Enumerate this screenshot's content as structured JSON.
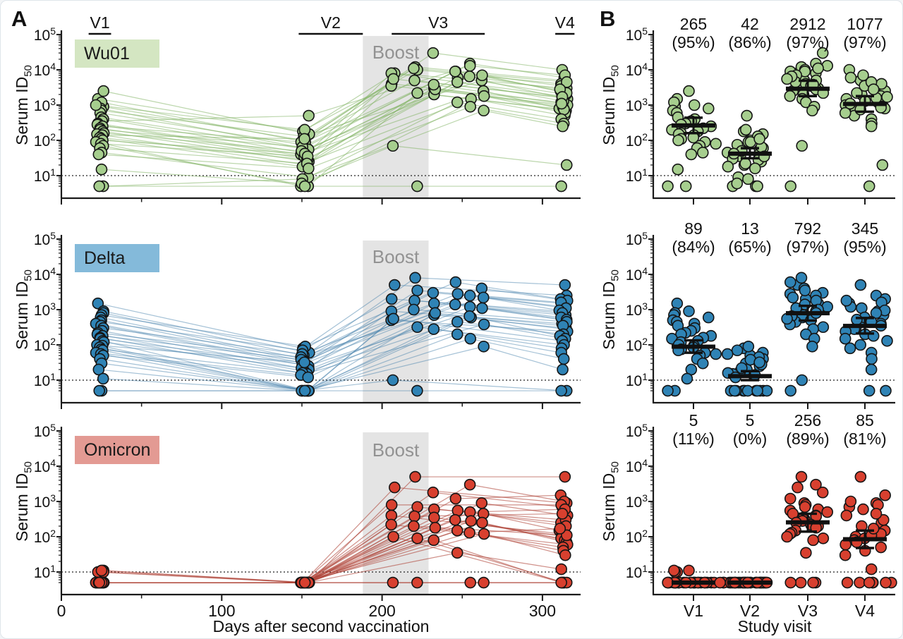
{
  "figure": {
    "panel_a_label": "A",
    "panel_b_label": "B",
    "y_axis_title": {
      "text": "Serum ID",
      "sub": "50"
    },
    "x_axis_title_a": "Days after second vaccination",
    "x_axis_title_b": "Study visit",
    "boost": {
      "label": "Boost",
      "day_start": 188,
      "day_end": 229,
      "fill": "#e4e4e4",
      "text_color": "#929292"
    },
    "visit_spans": [
      {
        "label": "V1",
        "day_start": 17,
        "day_end": 31
      },
      {
        "label": "V2",
        "day_start": 148,
        "day_end": 188
      },
      {
        "label": "V3",
        "day_start": 206,
        "day_end": 264
      },
      {
        "label": "V4",
        "day_start": 308,
        "day_end": 320
      }
    ],
    "axes": {
      "y_scale": "log10",
      "y_limits": [
        5,
        100000
      ],
      "y_ticks": [
        {
          "base": "10",
          "exp": "5"
        },
        {
          "base": "10",
          "exp": "4"
        },
        {
          "base": "10",
          "exp": "3"
        },
        {
          "base": "10",
          "exp": "2"
        },
        {
          "base": "10",
          "exp": "1"
        }
      ],
      "detection_threshold": 10,
      "floor_value": 5,
      "a_x_major_ticks": [
        0,
        100,
        200,
        300
      ],
      "a_x_minor_ticks": [
        50,
        150,
        250
      ],
      "b_x_ticks": [
        "V1",
        "V2",
        "V3",
        "V4"
      ]
    }
  },
  "chart_data": [
    {
      "type": "line-scatter",
      "antigen": "Wu01",
      "colors": {
        "fill": "#a6ce8e",
        "line": "#84b566",
        "legend_bg": "#d4e6c2",
        "line_opacity": 0.55
      },
      "visit_days": {
        "v1": 24,
        "v2": 152,
        "v3_options": [
          207,
          221,
          233,
          246,
          255,
          263
        ],
        "v4": 313
      },
      "subjects": [
        [
          1500,
          180,
          8000,
          3000
        ],
        [
          2500,
          150,
          12000,
          5000
        ],
        [
          900,
          100,
          30000,
          10000
        ],
        [
          1200,
          90,
          9000,
          2500
        ],
        [
          800,
          60,
          15000,
          6000
        ],
        [
          700,
          130,
          5000,
          1500
        ],
        [
          600,
          75,
          4000,
          1200
        ],
        [
          1000,
          200,
          10000,
          4000
        ],
        [
          450,
          55,
          3000,
          900
        ],
        [
          400,
          45,
          6000,
          2000
        ],
        [
          350,
          500,
          13000,
          7000
        ],
        [
          300,
          40,
          2500,
          800
        ],
        [
          280,
          35,
          8000,
          1800
        ],
        [
          250,
          90,
          5000,
          1600
        ],
        [
          220,
          30,
          2000,
          700
        ],
        [
          200,
          65,
          9000,
          3500
        ],
        [
          180,
          25,
          1500,
          500
        ],
        [
          160,
          50,
          7000,
          2200
        ],
        [
          150,
          20,
          3500,
          1000
        ],
        [
          140,
          110,
          11000,
          4500
        ],
        [
          120,
          28,
          2800,
          850
        ],
        [
          110,
          18,
          4500,
          1300
        ],
        [
          100,
          42,
          6500,
          2800
        ],
        [
          90,
          5,
          1800,
          600
        ],
        [
          80,
          35,
          5500,
          1700
        ],
        [
          70,
          5,
          2200,
          750
        ],
        [
          60,
          22,
          3800,
          1100
        ],
        [
          45,
          9,
          1200,
          400
        ],
        [
          40,
          16,
          900,
          300
        ],
        [
          5,
          8,
          700,
          250
        ],
        [
          15,
          6,
          70,
          20
        ],
        [
          5,
          5,
          5,
          5
        ]
      ],
      "b_stats": {
        "gmt": [
          265,
          42,
          2912,
          1077
        ],
        "responder_pct": [
          95,
          86,
          97,
          97
        ],
        "ci_low": [
          160,
          31,
          1800,
          650
        ],
        "ci_high": [
          440,
          60,
          4900,
          1800
        ]
      }
    },
    {
      "type": "line-scatter",
      "antigen": "Delta",
      "colors": {
        "fill": "#2f83b5",
        "line": "#4a84ad",
        "legend_bg": "#84bada",
        "line_opacity": 0.5
      },
      "visit_days": {
        "v1": 24,
        "v2": 152,
        "v3_options": [
          207,
          221,
          233,
          246,
          255,
          263
        ],
        "v4": 313
      },
      "subjects": [
        [
          1500,
          80,
          5000,
          2500
        ],
        [
          900,
          60,
          8000,
          5000
        ],
        [
          800,
          50,
          3000,
          1500
        ],
        [
          700,
          90,
          6000,
          2000
        ],
        [
          600,
          40,
          2500,
          1200
        ],
        [
          500,
          35,
          4000,
          1800
        ],
        [
          450,
          70,
          2000,
          900
        ],
        [
          400,
          30,
          3500,
          1600
        ],
        [
          350,
          25,
          1500,
          700
        ],
        [
          300,
          55,
          2800,
          1100
        ],
        [
          250,
          20,
          1200,
          500
        ],
        [
          220,
          45,
          2200,
          950
        ],
        [
          200,
          18,
          900,
          400
        ],
        [
          180,
          38,
          1800,
          800
        ],
        [
          160,
          15,
          700,
          300
        ],
        [
          150,
          28,
          1400,
          600
        ],
        [
          130,
          5,
          600,
          280
        ],
        [
          120,
          22,
          1100,
          520
        ],
        [
          100,
          5,
          500,
          240
        ],
        [
          95,
          32,
          1000,
          450
        ],
        [
          85,
          5,
          800,
          350
        ],
        [
          75,
          16,
          450,
          200
        ],
        [
          70,
          5,
          650,
          180
        ],
        [
          60,
          14,
          380,
          150
        ],
        [
          55,
          5,
          550,
          130
        ],
        [
          50,
          12,
          320,
          100
        ],
        [
          40,
          5,
          280,
          80
        ],
        [
          30,
          5,
          200,
          60
        ],
        [
          20,
          5,
          150,
          40
        ],
        [
          11,
          5,
          90,
          20
        ],
        [
          5,
          5,
          10,
          5
        ],
        [
          5,
          5,
          5,
          5
        ]
      ],
      "b_stats": {
        "gmt": [
          89,
          13,
          792,
          345
        ],
        "responder_pct": [
          84,
          65,
          97,
          95
        ],
        "ci_low": [
          60,
          10,
          490,
          210
        ],
        "ci_high": [
          135,
          18,
          1280,
          580
        ]
      }
    },
    {
      "type": "line-scatter",
      "antigen": "Omicron",
      "colors": {
        "fill": "#d8402f",
        "line": "#af4438",
        "legend_bg": "#e39a93",
        "line_opacity": 0.6
      },
      "visit_days": {
        "v1": 24,
        "v2": 152,
        "v3_options": [
          207,
          221,
          233,
          246,
          255,
          263
        ],
        "v4": 313
      },
      "subjects": [
        [
          10,
          5,
          2500,
          900
        ],
        [
          11,
          5,
          5000,
          5000
        ],
        [
          10,
          5,
          1800,
          700
        ],
        [
          11,
          5,
          1200,
          1500
        ],
        [
          5,
          5,
          3000,
          1000
        ],
        [
          5,
          5,
          900,
          400
        ],
        [
          5,
          5,
          800,
          800
        ],
        [
          5,
          5,
          700,
          250
        ],
        [
          5,
          5,
          600,
          300
        ],
        [
          5,
          5,
          550,
          200
        ],
        [
          5,
          5,
          500,
          600
        ],
        [
          5,
          5,
          450,
          150
        ],
        [
          5,
          5,
          400,
          120
        ],
        [
          5,
          5,
          380,
          450
        ],
        [
          5,
          5,
          350,
          100
        ],
        [
          5,
          5,
          300,
          90
        ],
        [
          5,
          5,
          280,
          80
        ],
        [
          5,
          5,
          250,
          70
        ],
        [
          5,
          5,
          220,
          60
        ],
        [
          5,
          5,
          200,
          110
        ],
        [
          5,
          5,
          180,
          50
        ],
        [
          5,
          5,
          150,
          40
        ],
        [
          5,
          5,
          130,
          170
        ],
        [
          5,
          5,
          120,
          30
        ],
        [
          5,
          5,
          100,
          5
        ],
        [
          5,
          5,
          90,
          5
        ],
        [
          5,
          5,
          80,
          5
        ],
        [
          5,
          5,
          35,
          12
        ],
        [
          5,
          5,
          5,
          5
        ],
        [
          5,
          5,
          5,
          5
        ],
        [
          5,
          5,
          5,
          5
        ],
        [
          5,
          5,
          5,
          5
        ]
      ],
      "b_stats": {
        "gmt": [
          5,
          5,
          256,
          85
        ],
        "responder_pct": [
          11,
          0,
          89,
          81
        ],
        "ci_low": [
          5,
          5,
          140,
          48
        ],
        "ci_high": [
          5,
          5,
          450,
          150
        ]
      }
    }
  ]
}
